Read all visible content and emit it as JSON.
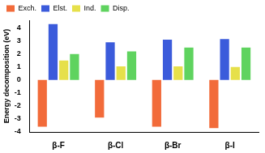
{
  "chart_data": {
    "type": "bar",
    "y_label": "Energy decomposition (eV)",
    "categories": [
      "β-F",
      "β-Cl",
      "β-Br",
      "β-I"
    ],
    "series": [
      {
        "name": "Exch.",
        "color": "#f26b3a",
        "values": [
          -3.6,
          -2.9,
          -3.6,
          -3.7
        ]
      },
      {
        "name": "Elst.",
        "color": "#3b5bdb",
        "values": [
          4.3,
          2.9,
          3.1,
          3.15
        ]
      },
      {
        "name": "Ind.",
        "color": "#e6e04a",
        "values": [
          1.5,
          1.05,
          1.05,
          1.0
        ]
      },
      {
        "name": "Disp.",
        "color": "#5fd35f",
        "values": [
          2.0,
          2.2,
          2.5,
          2.5
        ]
      }
    ],
    "ylim": [
      -4,
      4.6
    ],
    "yticks": [
      -4,
      -3,
      -2,
      -1,
      0,
      1,
      2,
      3,
      4
    ],
    "grid": false,
    "legend": "top"
  }
}
